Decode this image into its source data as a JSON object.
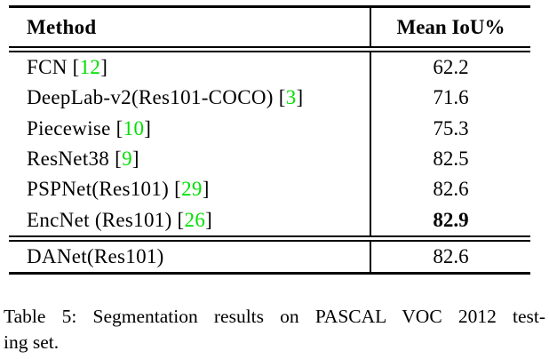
{
  "table": {
    "header": {
      "method": "Method",
      "value": "Mean IoU%"
    },
    "bracket_open": "[",
    "bracket_close": "]",
    "body_rows": [
      {
        "method": "FCN",
        "cite": "12",
        "value": "62.2",
        "bold": false
      },
      {
        "method": "DeepLab-v2(Res101-COCO)",
        "cite": "3",
        "value": "71.6",
        "bold": false
      },
      {
        "method": "Piecewise",
        "cite": "10",
        "value": "75.3",
        "bold": false
      },
      {
        "method": "ResNet38",
        "cite": "9",
        "value": "82.5",
        "bold": false
      },
      {
        "method": "PSPNet(Res101)",
        "cite": "29",
        "value": "82.6",
        "bold": false
      },
      {
        "method": "EncNet (Res101)",
        "cite": "26",
        "value": "82.9",
        "bold": true
      }
    ],
    "footer_rows": [
      {
        "method": "DANet(Res101)",
        "cite": null,
        "value": "82.6",
        "bold": false
      }
    ]
  },
  "caption": {
    "lines": [
      "Table 5: Segmentation results on PASCAL VOC 2012 test-",
      "ing set."
    ]
  },
  "colors": {
    "text": "#000000",
    "rule": "#000000",
    "citation": "#00e000",
    "background": "#ffffff"
  }
}
